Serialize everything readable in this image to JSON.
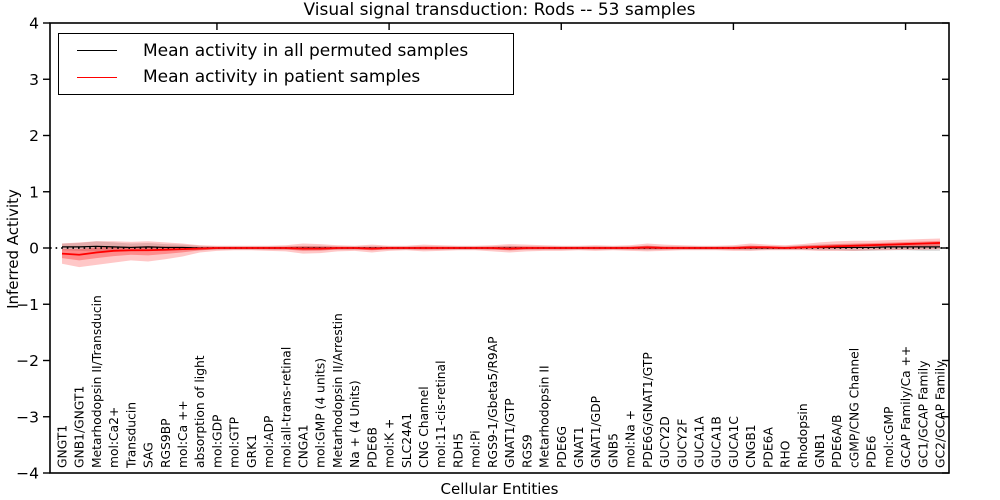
{
  "chart_data": {
    "type": "line",
    "title": "Visual signal transduction: Rods -- 53 samples",
    "xlabel": "Cellular Entities",
    "ylabel": "Inferred Activity",
    "ylim": [
      -4,
      4
    ],
    "yticks": [
      4,
      3,
      2,
      1,
      0,
      -1,
      -2,
      -3,
      -4
    ],
    "grid": false,
    "legend_position": "upper left",
    "zero_reference_line": {
      "y": 0,
      "style": "dotted",
      "color": "#000000"
    },
    "categories": [
      "GNGT1",
      "GNB1/GNGT1",
      "Metarhodopsin II/Transducin",
      "mol:Ca2+",
      "Transducin",
      "SAG",
      "RGS9BP",
      "mol:Ca ++",
      "absorption of light",
      "mol:GDP",
      "mol:GTP",
      "GRK1",
      "mol:ADP",
      "mol:all-trans-retinal",
      "CNGA1",
      "mol:GMP (4 units)",
      "Metarhodopsin II/Arrestin",
      "Na + (4 Units)",
      "PDE6B",
      "mol:K +",
      "SLC24A1",
      "CNG Channel",
      "mol:11-cis-retinal",
      "RDH5",
      "mol:Pi",
      "RGS9-1/Gbeta5/R9AP",
      "GNAT1/GTP",
      "RGS9",
      "Metarhodopsin II",
      "PDE6G",
      "GNAT1",
      "GNAT1/GDP",
      "GNB5",
      "mol:Na +",
      "PDE6G/GNAT1/GTP",
      "GUCY2D",
      "GUCY2F",
      "GUCA1A",
      "GUCA1B",
      "GUCA1C",
      "CNGB1",
      "PDE6A",
      "RHO",
      "Rhodopsin",
      "GNB1",
      "PDE6A/B",
      "cGMP/CNG Channel",
      "PDE6",
      "mol:cGMP",
      "GCAP Family/Ca ++",
      "GC1/GCAP Family",
      "GC2/GCAP Family"
    ],
    "series": [
      {
        "name": "Mean activity in all permuted samples",
        "color": "#000000",
        "band_color": "#999999",
        "values": [
          0.02,
          0.02,
          0.03,
          0.02,
          0.01,
          0.02,
          0.01,
          0.01,
          0.0,
          0.0,
          0.0,
          0.0,
          0.0,
          0.0,
          0.0,
          0.0,
          0.0,
          0.0,
          0.0,
          0.0,
          0.0,
          0.0,
          0.0,
          0.0,
          0.0,
          0.0,
          0.0,
          0.0,
          0.0,
          0.0,
          0.0,
          0.0,
          0.0,
          0.0,
          0.0,
          0.0,
          0.0,
          0.0,
          0.0,
          0.0,
          0.0,
          0.0,
          0.0,
          0.01,
          0.01,
          0.01,
          0.01,
          0.01,
          0.02,
          0.02,
          0.02,
          0.02
        ],
        "band_halfwidth": [
          0.06,
          0.07,
          0.09,
          0.08,
          0.07,
          0.07,
          0.06,
          0.05,
          0.04,
          0.03,
          0.03,
          0.03,
          0.03,
          0.03,
          0.04,
          0.04,
          0.03,
          0.03,
          0.03,
          0.03,
          0.03,
          0.03,
          0.03,
          0.03,
          0.03,
          0.03,
          0.04,
          0.03,
          0.03,
          0.03,
          0.03,
          0.03,
          0.03,
          0.03,
          0.04,
          0.03,
          0.03,
          0.03,
          0.03,
          0.03,
          0.04,
          0.03,
          0.03,
          0.04,
          0.05,
          0.05,
          0.06,
          0.06,
          0.06,
          0.06,
          0.07,
          0.07
        ]
      },
      {
        "name": "Mean activity in patient samples",
        "color": "#ff0000",
        "band_color": "#ff0000",
        "values": [
          -0.1,
          -0.12,
          -0.08,
          -0.05,
          -0.04,
          -0.04,
          -0.03,
          -0.02,
          -0.01,
          0.0,
          0.0,
          0.0,
          0.0,
          0.0,
          -0.01,
          -0.01,
          0.0,
          0.0,
          -0.01,
          0.0,
          0.0,
          0.0,
          0.0,
          0.0,
          0.0,
          0.0,
          -0.01,
          0.0,
          0.0,
          0.0,
          0.0,
          0.0,
          0.0,
          0.0,
          0.01,
          0.0,
          0.0,
          0.0,
          0.0,
          0.0,
          0.01,
          0.01,
          0.0,
          0.01,
          0.02,
          0.03,
          0.04,
          0.05,
          0.06,
          0.07,
          0.08,
          0.09
        ],
        "band_high": [
          0.08,
          0.1,
          0.12,
          0.12,
          0.11,
          0.12,
          0.1,
          0.08,
          0.05,
          0.04,
          0.04,
          0.04,
          0.04,
          0.05,
          0.08,
          0.07,
          0.05,
          0.04,
          0.06,
          0.04,
          0.04,
          0.06,
          0.05,
          0.04,
          0.04,
          0.05,
          0.07,
          0.06,
          0.05,
          0.04,
          0.04,
          0.05,
          0.04,
          0.05,
          0.08,
          0.06,
          0.05,
          0.04,
          0.04,
          0.05,
          0.08,
          0.06,
          0.05,
          0.07,
          0.1,
          0.12,
          0.13,
          0.13,
          0.14,
          0.15,
          0.16,
          0.17
        ],
        "band_low": [
          -0.28,
          -0.34,
          -0.3,
          -0.26,
          -0.22,
          -0.24,
          -0.2,
          -0.15,
          -0.08,
          -0.05,
          -0.04,
          -0.04,
          -0.05,
          -0.06,
          -0.1,
          -0.09,
          -0.06,
          -0.05,
          -0.08,
          -0.05,
          -0.04,
          -0.06,
          -0.05,
          -0.04,
          -0.04,
          -0.06,
          -0.08,
          -0.06,
          -0.05,
          -0.05,
          -0.04,
          -0.05,
          -0.04,
          -0.05,
          -0.06,
          -0.05,
          -0.04,
          -0.04,
          -0.04,
          -0.05,
          -0.05,
          -0.04,
          -0.04,
          -0.04,
          -0.05,
          -0.05,
          -0.05,
          -0.04,
          -0.04,
          -0.03,
          -0.03,
          -0.02
        ]
      }
    ]
  }
}
